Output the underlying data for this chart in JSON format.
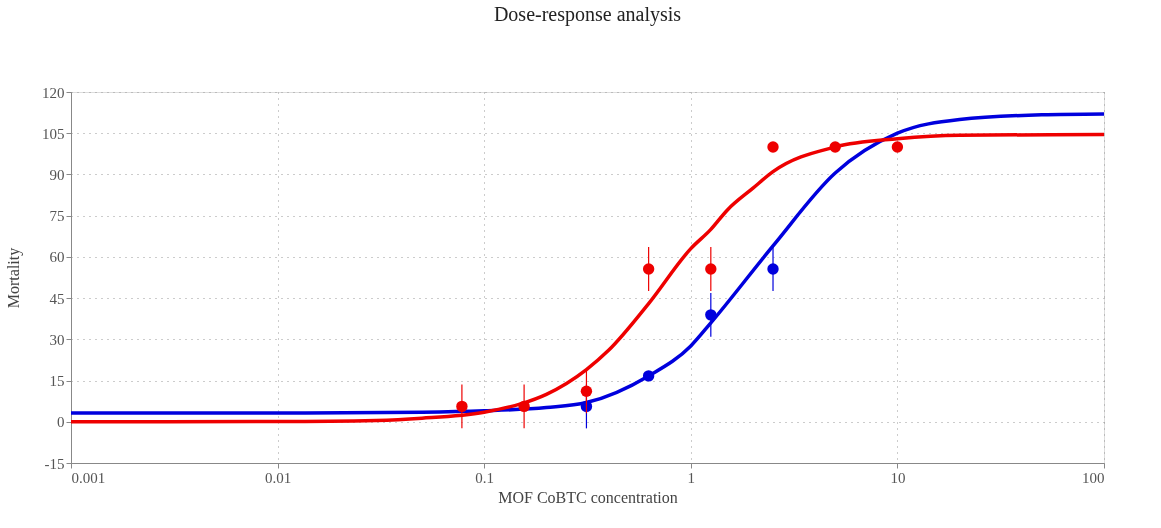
{
  "chart_data": {
    "type": "scatter",
    "title": "Dose-response analysis",
    "xlabel": "MOF CoBTC concentration",
    "ylabel": "Mortality",
    "log": "x",
    "grid": true,
    "marker": "circle",
    "xlim": [
      0.001,
      100
    ],
    "xticks": [
      0.001,
      0.01,
      0.1,
      1,
      10,
      100
    ],
    "ylim": [
      -15,
      120
    ],
    "yticks": [
      -15,
      0,
      15,
      30,
      45,
      60,
      75,
      90,
      105,
      120
    ],
    "series": [
      {
        "type": "line",
        "marker": "none",
        "color": "#0000dd",
        "x": [
          0.001,
          0.01,
          0.05,
          0.1,
          0.2,
          0.3125,
          0.625,
          1,
          1.25,
          2.5,
          5,
          10,
          20,
          50,
          100
        ],
        "values": [
          3.2,
          3.2,
          3.5,
          4,
          5.2,
          7,
          16.7,
          27.6,
          36,
          64,
          90.5,
          105,
          110,
          111.7,
          112
        ]
      },
      {
        "type": "line",
        "marker": "none",
        "color": "#ee0000",
        "x": [
          0.001,
          0.01,
          0.03,
          0.05,
          0.1,
          0.15,
          0.2,
          0.3125,
          0.4,
          0.625,
          1,
          1.25,
          1.5,
          2,
          2.5,
          5,
          10,
          20,
          100
        ],
        "values": [
          0,
          0.1,
          0.5,
          1.3,
          3.5,
          6.5,
          10,
          19,
          26,
          43,
          63,
          70,
          77,
          85,
          91,
          100,
          103,
          104.3,
          104.5
        ]
      },
      {
        "color": "#0000dd",
        "x": [
          0.3125,
          0.625,
          1.25,
          2.5
        ],
        "values": [
          5.6,
          16.7,
          38.9,
          55.6
        ],
        "errors": [
          8,
          null,
          8,
          8
        ]
      },
      {
        "color": "#ee0000",
        "x": [
          0.078,
          0.156,
          0.3125,
          0.625,
          1.25,
          2.5,
          5,
          10
        ],
        "values": [
          5.6,
          5.6,
          11.1,
          55.6,
          55.6,
          100,
          100,
          100
        ],
        "errors": [
          8,
          8,
          8,
          8,
          8,
          null,
          null,
          null
        ]
      }
    ]
  }
}
